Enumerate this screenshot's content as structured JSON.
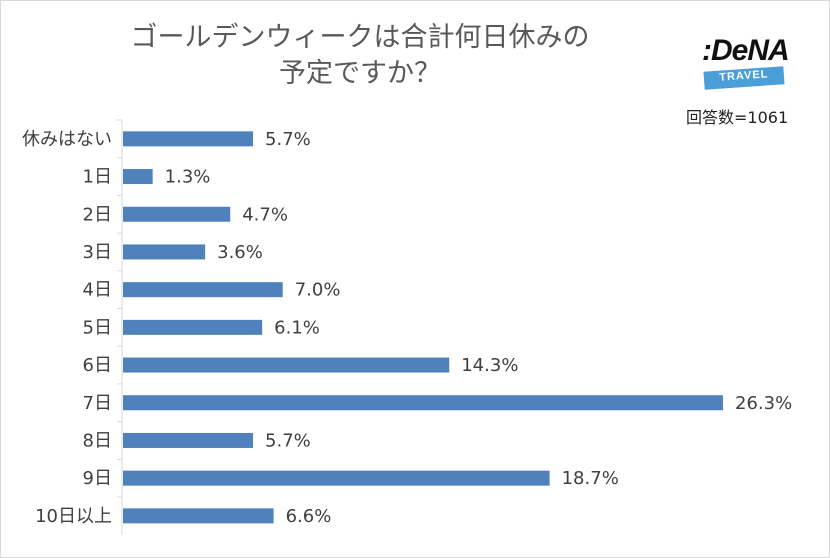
{
  "chart_data": {
    "type": "bar",
    "orientation": "horizontal",
    "title_lines": [
      "ゴールデンウィークは合計何日休みの",
      "予定ですか？"
    ],
    "categories": [
      "休みはない",
      "1日",
      "2日",
      "3日",
      "4日",
      "5日",
      "6日",
      "7日",
      "8日",
      "9日",
      "10日以上"
    ],
    "values": [
      5.7,
      1.3,
      4.7,
      3.6,
      7.0,
      6.1,
      14.3,
      26.3,
      5.7,
      18.7,
      6.6
    ],
    "value_labels": [
      "5.7%",
      "1.3%",
      "4.7%",
      "3.6%",
      "7.0%",
      "6.1%",
      "14.3%",
      "26.3%",
      "5.7%",
      "18.7%",
      "6.6%"
    ],
    "xlim": [
      0,
      26.3
    ],
    "bar_color": "#4f81bd",
    "grid": false,
    "legend": "none"
  },
  "annotation": {
    "respondents": "回答数=1061"
  },
  "logo": {
    "main": ":DeNA",
    "sub": "TRAVEL",
    "band_color": "#4a9fd8"
  }
}
